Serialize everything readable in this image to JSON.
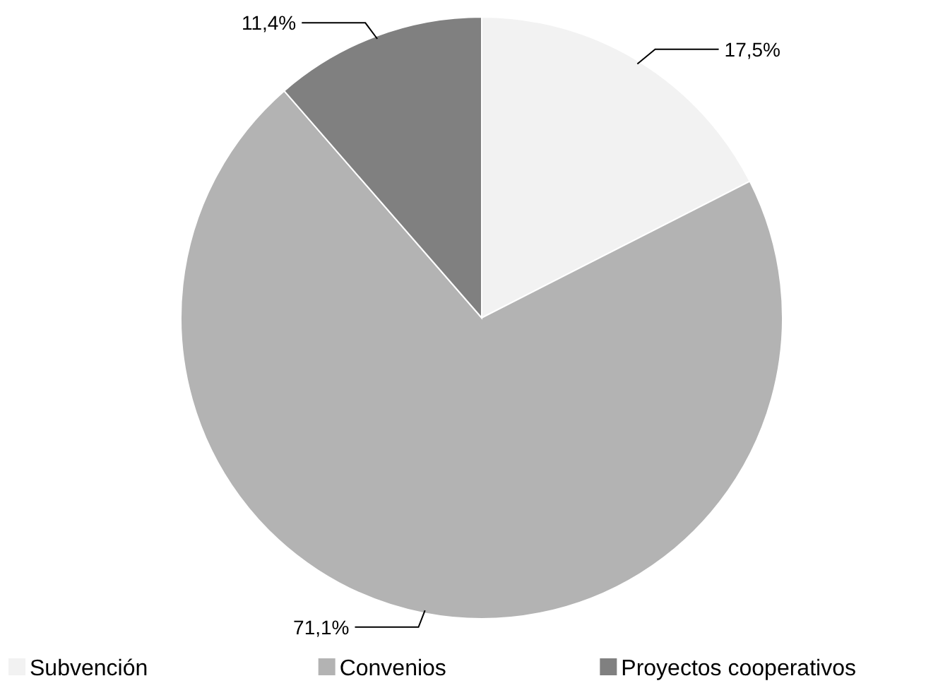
{
  "chart_data": {
    "type": "pie",
    "categories": [
      "Subvención",
      "Convenios",
      "Proyectos cooperativos"
    ],
    "values": [
      17.5,
      71.1,
      11.4
    ],
    "colors": [
      "#f2f2f2",
      "#b3b3b3",
      "#808080"
    ],
    "value_labels": [
      "17,5%",
      "71,1%",
      "11,4%"
    ],
    "legend": "bottom"
  }
}
